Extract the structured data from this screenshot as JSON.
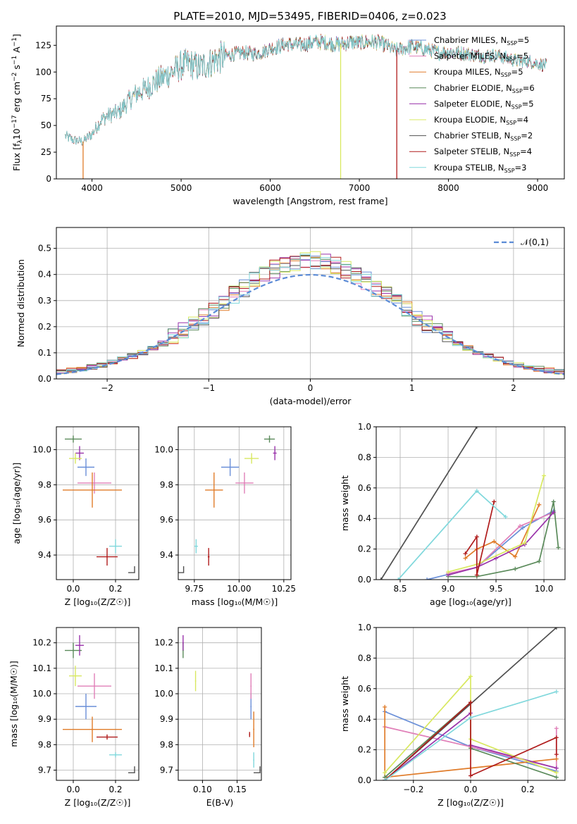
{
  "title": "PLATE=2010, MJD=53495, FIBERID=0406, z=0.023",
  "colors": {
    "chabrier_miles": "#6a8fd8",
    "salpeter_miles": "#e07fb8",
    "kroupa_miles": "#e07c2a",
    "chabrier_elodie": "#5a8a5a",
    "salpeter_elodie": "#9933aa",
    "kroupa_elodie": "#d8e860",
    "chabrier_stelib": "#505050",
    "salpeter_stelib": "#b01c1c",
    "kroupa_stelib": "#80d8dc"
  },
  "chart_data": [
    {
      "id": "spectrum",
      "type": "line",
      "xlabel": "wavelength [Angstrom, rest frame]",
      "ylabel": "Flux [f$_\\lambda$10$^{-17}$ erg cm$^{-2}$ s$^{-1}$ A$^{-1}$]",
      "ylabel_parts": [
        "Flux [f",
        "λ",
        "10",
        "−17",
        " erg cm",
        "−2",
        " s",
        "−1",
        " A",
        "−1",
        "]"
      ],
      "xlim": [
        3600,
        9300
      ],
      "ylim": [
        0,
        143
      ],
      "xticks": [
        4000,
        5000,
        6000,
        7000,
        8000,
        9000
      ],
      "yticks": [
        0,
        25,
        50,
        75,
        100,
        125
      ],
      "legend_position": "top-right",
      "series": [
        {
          "name": "Chabrier MILES",
          "nssp": "5",
          "color_key": "chabrier_miles"
        },
        {
          "name": "Salpeter MILES",
          "nssp": "5",
          "color_key": "salpeter_miles"
        },
        {
          "name": "Kroupa MILES",
          "nssp": "5",
          "color_key": "kroupa_miles"
        },
        {
          "name": "Chabrier ELODIE",
          "nssp": "6",
          "color_key": "chabrier_elodie"
        },
        {
          "name": "Salpeter ELODIE",
          "nssp": "5",
          "color_key": "salpeter_elodie"
        },
        {
          "name": "Kroupa ELODIE",
          "nssp": "4",
          "color_key": "kroupa_elodie"
        },
        {
          "name": "Chabrier STELIB",
          "nssp": "2",
          "color_key": "chabrier_stelib"
        },
        {
          "name": "Salpeter STELIB",
          "nssp": "4",
          "color_key": "salpeter_stelib"
        },
        {
          "name": "Kroupa STELIB",
          "nssp": "3",
          "color_key": "kroupa_stelib"
        }
      ],
      "continuum": [
        [
          3700,
          40
        ],
        [
          3800,
          36
        ],
        [
          3900,
          35
        ],
        [
          4000,
          42
        ],
        [
          4100,
          55
        ],
        [
          4200,
          60
        ],
        [
          4300,
          62
        ],
        [
          4400,
          72
        ],
        [
          4500,
          80
        ],
        [
          4600,
          84
        ],
        [
          4700,
          90
        ],
        [
          4800,
          95
        ],
        [
          4900,
          100
        ],
        [
          5000,
          106
        ],
        [
          5100,
          108
        ],
        [
          5200,
          104
        ],
        [
          5300,
          108
        ],
        [
          5400,
          112
        ],
        [
          5500,
          115
        ],
        [
          5600,
          117
        ],
        [
          5700,
          118
        ],
        [
          5800,
          117
        ],
        [
          5900,
          118
        ],
        [
          6000,
          122
        ],
        [
          6100,
          124
        ],
        [
          6200,
          126
        ],
        [
          6300,
          125
        ],
        [
          6400,
          126
        ],
        [
          6500,
          128
        ],
        [
          6600,
          128
        ],
        [
          6700,
          126
        ],
        [
          6800,
          126
        ],
        [
          6900,
          128
        ],
        [
          7000,
          127
        ],
        [
          7100,
          128
        ],
        [
          7200,
          128
        ],
        [
          7300,
          125
        ],
        [
          7400,
          120
        ],
        [
          7500,
          122
        ],
        [
          7600,
          124
        ],
        [
          7700,
          122
        ],
        [
          7800,
          120
        ],
        [
          7900,
          118
        ],
        [
          8000,
          119
        ],
        [
          8100,
          118
        ],
        [
          8200,
          117
        ],
        [
          8300,
          116
        ],
        [
          8400,
          115
        ],
        [
          8500,
          116
        ],
        [
          8600,
          114
        ],
        [
          8700,
          112
        ],
        [
          8800,
          110
        ],
        [
          8900,
          110
        ],
        [
          9000,
          108
        ],
        [
          9100,
          106
        ]
      ],
      "drops": [
        {
          "x": 3900,
          "color_key": "kroupa_miles"
        },
        {
          "x": 6790,
          "color_key": "kroupa_elodie"
        },
        {
          "x": 7420,
          "color_key": "salpeter_stelib"
        }
      ]
    },
    {
      "id": "residuals",
      "type": "histogram",
      "xlabel": "(data-model)/error",
      "ylabel": "Normed distribution",
      "xlim": [
        -2.5,
        2.5
      ],
      "ylim": [
        0,
        0.58
      ],
      "xticks": [
        -2,
        -1,
        0,
        1,
        2
      ],
      "xtick_labels": [
        "−2",
        "−1",
        "0",
        "1",
        "2"
      ],
      "yticks": [
        0.0,
        0.1,
        0.2,
        0.3,
        0.4,
        0.5
      ],
      "ytick_labels": [
        "0.0",
        "0.1",
        "0.2",
        "0.3",
        "0.4",
        "0.5"
      ],
      "legend": {
        "label": "𝒩(0,1)",
        "position": "top-right",
        "color": "#5b8bd6",
        "style": "dashed"
      },
      "bin_width": 0.1
    },
    {
      "id": "age_vs_Z",
      "type": "errorbar",
      "xlabel": "Z [log₁₀(Z/Z☉)]",
      "ylabel": "age  [log₁₀(age/yr)]",
      "xlim": [
        -0.08,
        0.31
      ],
      "ylim": [
        9.26,
        10.13
      ],
      "xticks": [
        0.0,
        0.2
      ],
      "xtick_labels": [
        "0.0",
        "0.2"
      ],
      "yticks": [
        9.4,
        9.6,
        9.8,
        10.0
      ],
      "ytick_labels": [
        "9.4",
        "9.6",
        "9.8",
        "10.0"
      ],
      "points": [
        {
          "color_key": "chabrier_miles",
          "x": 0.06,
          "y": 9.9,
          "xerr": 0.04,
          "yerr": 0.05
        },
        {
          "color_key": "salpeter_miles",
          "x": 0.1,
          "y": 9.81,
          "xerr": 0.08,
          "yerr": 0.06
        },
        {
          "color_key": "kroupa_miles",
          "x": 0.09,
          "y": 9.77,
          "xerr": 0.14,
          "yerr": 0.1
        },
        {
          "color_key": "chabrier_elodie",
          "x": 0.0,
          "y": 10.06,
          "xerr": 0.04,
          "yerr": 0.02
        },
        {
          "color_key": "salpeter_elodie",
          "x": 0.03,
          "y": 9.98,
          "xerr": 0.02,
          "yerr": 0.04
        },
        {
          "color_key": "kroupa_elodie",
          "x": 0.01,
          "y": 9.95,
          "xerr": 0.03,
          "yerr": 0.03
        },
        {
          "color_key": "chabrier_stelib",
          "x": 0.29,
          "y": 9.3,
          "xerr": 0.0,
          "yerr": 0.0
        },
        {
          "color_key": "salpeter_stelib",
          "x": 0.16,
          "y": 9.39,
          "xerr": 0.05,
          "yerr": 0.05
        },
        {
          "color_key": "kroupa_stelib",
          "x": 0.2,
          "y": 9.45,
          "xerr": 0.03,
          "yerr": 0.04
        }
      ]
    },
    {
      "id": "age_vs_mass",
      "type": "errorbar",
      "xlabel": "mass [log₁₀(M/M☉)]",
      "ylabel": "",
      "xlim": [
        9.66,
        10.29
      ],
      "ylim": [
        9.26,
        10.13
      ],
      "xticks": [
        9.75,
        10.0,
        10.25
      ],
      "xtick_labels": [
        "9.75",
        "10.00",
        "10.25"
      ],
      "yticks": [
        9.4,
        9.6,
        9.8,
        10.0
      ],
      "ytick_labels": [
        "9.4",
        "9.6",
        "9.8",
        "10.0"
      ],
      "points": [
        {
          "color_key": "chabrier_miles",
          "x": 9.95,
          "y": 9.9,
          "xerr": 0.05,
          "yerr": 0.05
        },
        {
          "color_key": "salpeter_miles",
          "x": 10.03,
          "y": 9.81,
          "xerr": 0.05,
          "yerr": 0.06
        },
        {
          "color_key": "kroupa_miles",
          "x": 9.86,
          "y": 9.77,
          "xerr": 0.05,
          "yerr": 0.1
        },
        {
          "color_key": "chabrier_elodie",
          "x": 10.17,
          "y": 10.06,
          "xerr": 0.03,
          "yerr": 0.02
        },
        {
          "color_key": "salpeter_elodie",
          "x": 10.2,
          "y": 9.98,
          "xerr": 0.01,
          "yerr": 0.04
        },
        {
          "color_key": "kroupa_elodie",
          "x": 10.07,
          "y": 9.95,
          "xerr": 0.04,
          "yerr": 0.03
        },
        {
          "color_key": "chabrier_stelib",
          "x": 9.69,
          "y": 9.3,
          "xerr": 0.0,
          "yerr": 0.0
        },
        {
          "color_key": "salpeter_stelib",
          "x": 9.83,
          "y": 9.39,
          "xerr": 0.005,
          "yerr": 0.05
        },
        {
          "color_key": "kroupa_stelib",
          "x": 9.76,
          "y": 9.45,
          "xerr": 0.01,
          "yerr": 0.04
        }
      ]
    },
    {
      "id": "massweight_vs_age",
      "type": "line",
      "xlabel": "age  [log₁₀(age/yr)]",
      "ylabel": "mass weight",
      "xlim": [
        8.25,
        10.22
      ],
      "ylim": [
        0,
        1.0
      ],
      "xticks": [
        8.5,
        9.0,
        9.5,
        10.0
      ],
      "xtick_labels": [
        "8.5",
        "9.0",
        "9.5",
        "10.0"
      ],
      "yticks": [
        0.0,
        0.2,
        0.4,
        0.6,
        0.8,
        1.0
      ],
      "ytick_labels": [
        "0.0",
        "0.2",
        "0.4",
        "0.6",
        "0.8",
        "1.0"
      ],
      "series": [
        {
          "color_key": "chabrier_miles",
          "x": [
            8.78,
            9.3,
            9.78,
            10.1
          ],
          "y": [
            0.0,
            0.08,
            0.34,
            0.45
          ]
        },
        {
          "color_key": "salpeter_miles",
          "x": [
            9.0,
            9.3,
            9.75,
            10.1
          ],
          "y": [
            0.04,
            0.08,
            0.35,
            0.44
          ]
        },
        {
          "color_key": "kroupa_miles",
          "x": [
            9.18,
            9.3,
            9.48,
            9.7,
            9.95
          ],
          "y": [
            0.14,
            0.2,
            0.25,
            0.15,
            0.49
          ]
        },
        {
          "color_key": "chabrier_elodie",
          "x": [
            9.0,
            9.3,
            9.7,
            9.95,
            10.1,
            10.15
          ],
          "y": [
            0.02,
            0.02,
            0.07,
            0.12,
            0.51,
            0.21
          ]
        },
        {
          "color_key": "salpeter_elodie",
          "x": [
            9.0,
            9.3,
            9.5,
            9.8,
            10.1
          ],
          "y": [
            0.03,
            0.08,
            0.14,
            0.23,
            0.44
          ]
        },
        {
          "color_key": "kroupa_elodie",
          "x": [
            9.0,
            9.3,
            9.8,
            10.0
          ],
          "y": [
            0.05,
            0.1,
            0.24,
            0.68
          ]
        },
        {
          "color_key": "chabrier_stelib",
          "x": [
            8.3,
            9.3
          ],
          "y": [
            0.0,
            1.0
          ]
        },
        {
          "color_key": "salpeter_stelib",
          "x": [
            9.18,
            9.3,
            9.3,
            9.48
          ],
          "y": [
            0.17,
            0.28,
            0.03,
            0.51
          ]
        },
        {
          "color_key": "kroupa_stelib",
          "x": [
            8.48,
            9.3,
            9.6
          ],
          "y": [
            0.0,
            0.58,
            0.41
          ]
        }
      ]
    },
    {
      "id": "mass_vs_Z",
      "type": "errorbar",
      "xlabel": "Z [log₁₀(Z/Z☉)]",
      "ylabel": "mass [log₁₀(M/M☉)]",
      "xlim": [
        -0.08,
        0.31
      ],
      "ylim": [
        9.66,
        10.26
      ],
      "xticks": [
        0.0,
        0.2
      ],
      "xtick_labels": [
        "0.0",
        "0.2"
      ],
      "yticks": [
        9.7,
        9.8,
        9.9,
        10.0,
        10.1,
        10.2
      ],
      "ytick_labels": [
        "9.7",
        "9.8",
        "9.9",
        "10.0",
        "10.1",
        "10.2"
      ],
      "points": [
        {
          "color_key": "chabrier_miles",
          "x": 0.06,
          "y": 9.95,
          "xerr": 0.05,
          "yerr": 0.05
        },
        {
          "color_key": "salpeter_miles",
          "x": 0.1,
          "y": 10.03,
          "xerr": 0.08,
          "yerr": 0.05
        },
        {
          "color_key": "kroupa_miles",
          "x": 0.09,
          "y": 9.86,
          "xerr": 0.14,
          "yerr": 0.05
        },
        {
          "color_key": "chabrier_elodie",
          "x": 0.0,
          "y": 10.17,
          "xerr": 0.04,
          "yerr": 0.03
        },
        {
          "color_key": "salpeter_elodie",
          "x": 0.03,
          "y": 10.19,
          "xerr": 0.02,
          "yerr": 0.04
        },
        {
          "color_key": "kroupa_elodie",
          "x": 0.01,
          "y": 10.07,
          "xerr": 0.03,
          "yerr": 0.04
        },
        {
          "color_key": "chabrier_stelib",
          "x": 0.29,
          "y": 9.69,
          "xerr": 0.0,
          "yerr": 0.0
        },
        {
          "color_key": "salpeter_stelib",
          "x": 0.16,
          "y": 9.83,
          "xerr": 0.05,
          "yerr": 0.01
        },
        {
          "color_key": "kroupa_stelib",
          "x": 0.2,
          "y": 9.76,
          "xerr": 0.03,
          "yerr": 0.01
        }
      ]
    },
    {
      "id": "mass_vs_ebv",
      "type": "errorbar",
      "xlabel": "E(B-V)",
      "ylabel": "",
      "xlim": [
        0.065,
        0.185
      ],
      "ylim": [
        9.66,
        10.26
      ],
      "xticks": [
        0.1,
        0.15
      ],
      "xtick_labels": [
        "0.10",
        "0.15"
      ],
      "yticks": [
        9.7,
        9.8,
        9.9,
        10.0,
        10.1,
        10.2
      ],
      "ytick_labels": [
        "9.7",
        "9.8",
        "9.9",
        "10.0",
        "10.1",
        "10.2"
      ],
      "points": [
        {
          "color_key": "chabrier_miles",
          "x": 0.17,
          "y": 9.95,
          "xerr": 0.0,
          "yerr": 0.05
        },
        {
          "color_key": "salpeter_miles",
          "x": 0.17,
          "y": 10.03,
          "xerr": 0.0,
          "yerr": 0.05
        },
        {
          "color_key": "kroupa_miles",
          "x": 0.174,
          "y": 9.86,
          "xerr": 0.0,
          "yerr": 0.07
        },
        {
          "color_key": "chabrier_elodie",
          "x": 0.072,
          "y": 10.17,
          "xerr": 0.0,
          "yerr": 0.03
        },
        {
          "color_key": "salpeter_elodie",
          "x": 0.072,
          "y": 10.2,
          "xerr": 0.0,
          "yerr": 0.03
        },
        {
          "color_key": "kroupa_elodie",
          "x": 0.09,
          "y": 10.05,
          "xerr": 0.0,
          "yerr": 0.04
        },
        {
          "color_key": "chabrier_stelib",
          "x": 0.183,
          "y": 9.69,
          "xerr": 0.0,
          "yerr": 0.0
        },
        {
          "color_key": "salpeter_stelib",
          "x": 0.168,
          "y": 9.84,
          "xerr": 0.0,
          "yerr": 0.01
        },
        {
          "color_key": "kroupa_stelib",
          "x": 0.174,
          "y": 9.74,
          "xerr": 0.0,
          "yerr": 0.03
        }
      ]
    },
    {
      "id": "massweight_vs_Z",
      "type": "line",
      "xlabel": "Z [log₁₀(Z/Z☉)]",
      "ylabel": "mass weight",
      "xlim": [
        -0.33,
        0.33
      ],
      "ylim": [
        0,
        1.0
      ],
      "xticks": [
        -0.2,
        0.0,
        0.2
      ],
      "xtick_labels": [
        "−0.2",
        "0.0",
        "0.2"
      ],
      "yticks": [
        0.0,
        0.2,
        0.4,
        0.6,
        0.8,
        1.0
      ],
      "ytick_labels": [
        "0.0",
        "0.2",
        "0.4",
        "0.6",
        "0.8",
        "1.0"
      ],
      "series": [
        {
          "color_key": "chabrier_miles",
          "x": [
            -0.3,
            0.0,
            0.3
          ],
          "y": [
            0.45,
            0.22,
            0.06
          ]
        },
        {
          "color_key": "salpeter_miles",
          "x": [
            -0.3,
            0.0,
            0.3,
            0.3
          ],
          "y": [
            0.35,
            0.22,
            0.08,
            0.34
          ]
        },
        {
          "color_key": "kroupa_miles",
          "x": [
            -0.3,
            -0.3,
            0.0,
            0.3
          ],
          "y": [
            0.48,
            0.02,
            0.08,
            0.14
          ]
        },
        {
          "color_key": "chabrier_elodie",
          "x": [
            -0.3,
            0.0,
            0.0,
            0.3
          ],
          "y": [
            0.02,
            0.51,
            0.21,
            0.02
          ]
        },
        {
          "color_key": "salpeter_elodie",
          "x": [
            -0.3,
            0.0,
            0.0,
            0.3
          ],
          "y": [
            0.0,
            0.44,
            0.23,
            0.08
          ]
        },
        {
          "color_key": "kroupa_elodie",
          "x": [
            -0.3,
            0.0,
            0.0,
            0.3
          ],
          "y": [
            0.05,
            0.68,
            0.27,
            0.05
          ]
        },
        {
          "color_key": "chabrier_stelib",
          "x": [
            -0.3,
            0.3
          ],
          "y": [
            0.0,
            1.0
          ]
        },
        {
          "color_key": "salpeter_stelib",
          "x": [
            -0.3,
            0.0,
            0.0,
            0.3,
            0.3
          ],
          "y": [
            0.0,
            0.51,
            0.03,
            0.28,
            0.17
          ]
        },
        {
          "color_key": "kroupa_stelib",
          "x": [
            -0.3,
            0.0,
            0.3
          ],
          "y": [
            0.0,
            0.41,
            0.58
          ]
        }
      ]
    }
  ]
}
